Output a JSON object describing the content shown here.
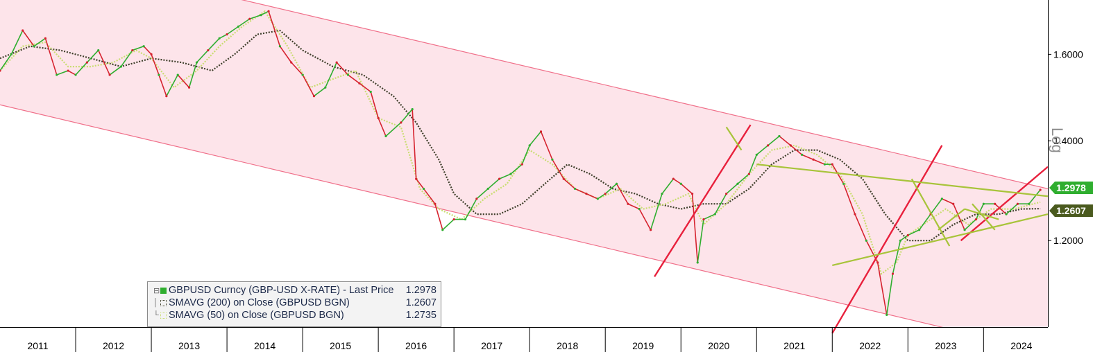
{
  "chart_data": {
    "type": "line",
    "scale": "log",
    "grid": false,
    "y_ticks": [
      "1.6000",
      "1.4000",
      "1.2000"
    ],
    "y_tick_values": [
      1.6,
      1.4,
      1.2
    ],
    "ylim": [
      1.05,
      1.74
    ],
    "y_axis_label": "Log",
    "x_categories": [
      "2011",
      "2012",
      "2013",
      "2014",
      "2015",
      "2016",
      "2017",
      "2018",
      "2019",
      "2020",
      "2021",
      "2022",
      "2023",
      "2024"
    ],
    "xlim": [
      2011.0,
      2024.85
    ],
    "series": [
      {
        "name": "GBPUSD Curncy (GBP-USD X-RATE) - Last Price",
        "last": "1.2978",
        "color": "#2fae2f",
        "x": [
          2011.0,
          2011.15,
          2011.3,
          2011.45,
          2011.6,
          2011.75,
          2011.9,
          2012.0,
          2012.15,
          2012.3,
          2012.45,
          2012.6,
          2012.75,
          2012.9,
          2013.0,
          2013.1,
          2013.2,
          2013.35,
          2013.5,
          2013.6,
          2013.75,
          2013.9,
          2014.0,
          2014.15,
          2014.3,
          2014.45,
          2014.55,
          2014.7,
          2014.85,
          2015.0,
          2015.15,
          2015.3,
          2015.45,
          2015.6,
          2015.75,
          2015.9,
          2016.0,
          2016.1,
          2016.3,
          2016.45,
          2016.5,
          2016.6,
          2016.75,
          2016.85,
          2017.0,
          2017.15,
          2017.3,
          2017.45,
          2017.6,
          2017.75,
          2017.9,
          2018.0,
          2018.15,
          2018.3,
          2018.45,
          2018.6,
          2018.75,
          2018.9,
          2019.0,
          2019.15,
          2019.3,
          2019.45,
          2019.6,
          2019.75,
          2019.9,
          2020.0,
          2020.15,
          2020.22,
          2020.3,
          2020.45,
          2020.6,
          2020.75,
          2020.9,
          2021.0,
          2021.15,
          2021.3,
          2021.45,
          2021.6,
          2021.75,
          2021.9,
          2022.0,
          2022.15,
          2022.3,
          2022.45,
          2022.6,
          2022.72,
          2022.8,
          2022.9,
          2023.0,
          2023.15,
          2023.3,
          2023.45,
          2023.6,
          2023.75,
          2023.9,
          2024.0,
          2024.15,
          2024.3,
          2024.45,
          2024.6,
          2024.75
        ],
        "y": [
          1.56,
          1.6,
          1.66,
          1.62,
          1.64,
          1.55,
          1.56,
          1.55,
          1.58,
          1.61,
          1.55,
          1.57,
          1.61,
          1.62,
          1.6,
          1.55,
          1.5,
          1.55,
          1.52,
          1.58,
          1.61,
          1.64,
          1.65,
          1.67,
          1.69,
          1.7,
          1.71,
          1.62,
          1.58,
          1.55,
          1.5,
          1.52,
          1.58,
          1.55,
          1.53,
          1.51,
          1.45,
          1.41,
          1.44,
          1.47,
          1.32,
          1.3,
          1.27,
          1.22,
          1.24,
          1.24,
          1.28,
          1.3,
          1.32,
          1.33,
          1.35,
          1.39,
          1.42,
          1.36,
          1.32,
          1.3,
          1.29,
          1.28,
          1.29,
          1.31,
          1.27,
          1.26,
          1.22,
          1.29,
          1.32,
          1.31,
          1.29,
          1.16,
          1.24,
          1.25,
          1.29,
          1.31,
          1.33,
          1.37,
          1.39,
          1.41,
          1.39,
          1.37,
          1.36,
          1.35,
          1.35,
          1.31,
          1.25,
          1.2,
          1.16,
          1.07,
          1.14,
          1.2,
          1.21,
          1.22,
          1.25,
          1.28,
          1.27,
          1.22,
          1.24,
          1.27,
          1.27,
          1.25,
          1.27,
          1.27,
          1.2978
        ]
      },
      {
        "name": "SMAVG (200) on Close (GBPUSD BGN)",
        "last": "1.2607",
        "color": "#3e3e2a",
        "x": [
          2011.0,
          2011.4,
          2011.8,
          2012.2,
          2012.6,
          2013.0,
          2013.4,
          2013.8,
          2014.1,
          2014.4,
          2014.7,
          2015.0,
          2015.4,
          2015.8,
          2016.2,
          2016.5,
          2016.8,
          2017.0,
          2017.3,
          2017.6,
          2017.9,
          2018.2,
          2018.5,
          2018.8,
          2019.1,
          2019.4,
          2019.7,
          2020.0,
          2020.3,
          2020.6,
          2020.9,
          2021.2,
          2021.5,
          2021.8,
          2022.1,
          2022.4,
          2022.7,
          2023.0,
          2023.3,
          2023.6,
          2023.9,
          2024.2,
          2024.5,
          2024.75
        ],
        "y": [
          1.59,
          1.62,
          1.61,
          1.59,
          1.57,
          1.59,
          1.58,
          1.56,
          1.6,
          1.65,
          1.66,
          1.61,
          1.57,
          1.55,
          1.5,
          1.44,
          1.36,
          1.29,
          1.25,
          1.25,
          1.27,
          1.31,
          1.35,
          1.33,
          1.3,
          1.29,
          1.27,
          1.26,
          1.27,
          1.27,
          1.3,
          1.35,
          1.38,
          1.38,
          1.36,
          1.32,
          1.25,
          1.2,
          1.2,
          1.23,
          1.25,
          1.25,
          1.26,
          1.2607
        ]
      },
      {
        "name": "SMAVG (50) on Close (GBPUSD BGN)",
        "last": "1.2735",
        "color": "#c9dd70",
        "x": [
          2011.0,
          2011.3,
          2011.6,
          2011.9,
          2012.2,
          2012.5,
          2012.8,
          2013.0,
          2013.3,
          2013.6,
          2013.9,
          2014.2,
          2014.5,
          2014.8,
          2015.1,
          2015.4,
          2015.7,
          2016.0,
          2016.3,
          2016.55,
          2016.8,
          2017.1,
          2017.4,
          2017.7,
          2018.0,
          2018.3,
          2018.6,
          2018.9,
          2019.2,
          2019.5,
          2019.8,
          2020.1,
          2020.3,
          2020.6,
          2020.9,
          2021.2,
          2021.5,
          2021.8,
          2022.1,
          2022.4,
          2022.65,
          2022.85,
          2023.0,
          2023.3,
          2023.5,
          2023.8,
          2024.1,
          2024.4,
          2024.75
        ],
        "y": [
          1.56,
          1.62,
          1.63,
          1.57,
          1.57,
          1.58,
          1.61,
          1.59,
          1.52,
          1.56,
          1.62,
          1.67,
          1.71,
          1.62,
          1.52,
          1.54,
          1.56,
          1.45,
          1.43,
          1.3,
          1.26,
          1.24,
          1.28,
          1.31,
          1.38,
          1.35,
          1.3,
          1.28,
          1.3,
          1.26,
          1.27,
          1.29,
          1.23,
          1.27,
          1.33,
          1.38,
          1.39,
          1.37,
          1.33,
          1.25,
          1.14,
          1.16,
          1.21,
          1.24,
          1.26,
          1.23,
          1.26,
          1.26,
          1.2735
        ]
      }
    ],
    "channel": {
      "upper": {
        "x": [
          2011.0,
          2024.85
        ],
        "y": [
          1.9,
          1.3
        ]
      },
      "lower": {
        "x": [
          2011.0,
          2024.85
        ],
        "y": [
          1.48,
          1.01
        ]
      }
    },
    "annotations": {
      "red_trendlines": [
        {
          "x": [
            2019.65,
            2020.92
          ],
          "y": [
            1.135,
            1.435
          ]
        },
        {
          "x": [
            2022.0,
            2023.45
          ],
          "y": [
            1.04,
            1.39
          ]
        },
        {
          "x": [
            2023.7,
            2024.85
          ],
          "y": [
            1.2,
            1.345
          ]
        }
      ],
      "green_trendlines": [
        {
          "x": [
            2022.0,
            2024.85
          ],
          "y": [
            1.155,
            1.25
          ]
        },
        {
          "x": [
            2021.0,
            2024.85
          ],
          "y": [
            1.35,
            1.285
          ]
        },
        {
          "x": [
            2023.05,
            2023.55
          ],
          "y": [
            1.32,
            1.19
          ]
        },
        {
          "x": [
            2023.75,
            2024.2
          ],
          "y": [
            1.26,
            1.24
          ]
        },
        {
          "x": [
            2023.4,
            2023.75
          ],
          "y": [
            1.22,
            1.26
          ]
        },
        {
          "x": [
            2023.85,
            2024.15
          ],
          "y": [
            1.27,
            1.22
          ]
        },
        {
          "x": [
            2020.6,
            2020.8
          ],
          "y": [
            1.43,
            1.38
          ]
        }
      ]
    }
  },
  "legend": {
    "items": [
      {
        "label": "GBPUSD Curncy (GBP-USD X-RATE) - Last Price",
        "value": "1.2978",
        "swatch": "#2fae2f",
        "style": "solid"
      },
      {
        "label": "SMAVG (200)  on Close (GBPUSD BGN)",
        "value": "1.2607",
        "swatch": "#3e3e2a",
        "style": "dotted"
      },
      {
        "label": "SMAVG (50)  on Close (GBPUSD BGN)",
        "value": "1.2735",
        "swatch": "#c9dd70",
        "style": "dotted"
      }
    ]
  },
  "price_tags": [
    {
      "value": "1.2978",
      "bg": "#2fae2f"
    },
    {
      "value": "1.2607",
      "bg": "#4a5a1e"
    }
  ],
  "colors": {
    "channel_fill": "#fde4ea",
    "channel_line": "#f0708a",
    "trend_red": "#e8203c",
    "trend_green": "#a8c43a"
  }
}
